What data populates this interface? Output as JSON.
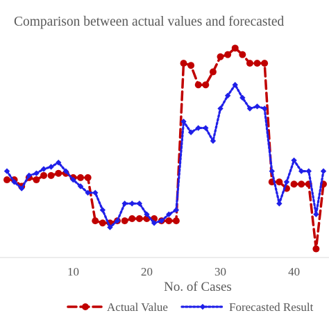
{
  "chart_data": {
    "type": "line",
    "title": "Comparison between actual values and forecasted",
    "xlabel": "No. of Cases",
    "ylabel": "",
    "x_ticks": [
      10,
      20,
      30,
      40
    ],
    "xlim": [
      0.5,
      44
    ],
    "ylim": [
      0,
      100
    ],
    "grid": false,
    "legend_position": "bottom",
    "x": [
      1,
      2,
      3,
      4,
      5,
      6,
      7,
      8,
      9,
      10,
      11,
      12,
      13,
      14,
      15,
      16,
      17,
      18,
      19,
      20,
      21,
      22,
      23,
      24,
      25,
      26,
      27,
      28,
      29,
      30,
      31,
      32,
      33,
      34,
      35,
      36,
      37,
      38,
      39,
      40,
      41,
      42,
      43,
      44
    ],
    "series": [
      {
        "name": "Actual Value",
        "color": "#c00000",
        "style": "dashed",
        "marker": "circle",
        "values": [
          36,
          36,
          33,
          37,
          36,
          38,
          38,
          39,
          39,
          37,
          37,
          37,
          17,
          16,
          16,
          17,
          17,
          18,
          18,
          18,
          18,
          17,
          17,
          17,
          90,
          89,
          80,
          80,
          86,
          93,
          94,
          97,
          94,
          90,
          90,
          90,
          35,
          35,
          32,
          34,
          34,
          34,
          4,
          34
        ]
      },
      {
        "name": "Forecasted Result",
        "color": "#1f1fe8",
        "style": "dotted",
        "marker": "diamond",
        "values": [
          40,
          35,
          32,
          38,
          39,
          41,
          42,
          44,
          40,
          36,
          33,
          30,
          30,
          22,
          14,
          17,
          25,
          25,
          25,
          20,
          16,
          17,
          20,
          22,
          63,
          58,
          60,
          60,
          54,
          69,
          75,
          80,
          74,
          69,
          70,
          69,
          40,
          25,
          35,
          45,
          40,
          40,
          20,
          40
        ]
      }
    ]
  }
}
